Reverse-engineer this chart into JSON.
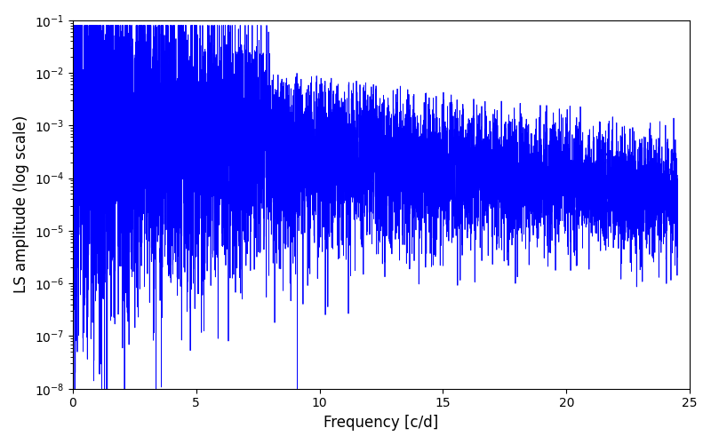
{
  "xlabel": "Frequency [c/d]",
  "ylabel": "LS amplitude (log scale)",
  "xlim": [
    0,
    25
  ],
  "ylim": [
    1e-08,
    0.1
  ],
  "line_color": "#0000ff",
  "line_width": 0.6,
  "background_color": "#ffffff",
  "seed": 7,
  "n_points": 8000,
  "freq_max": 24.5,
  "xlabel_fontsize": 12,
  "ylabel_fontsize": 12
}
